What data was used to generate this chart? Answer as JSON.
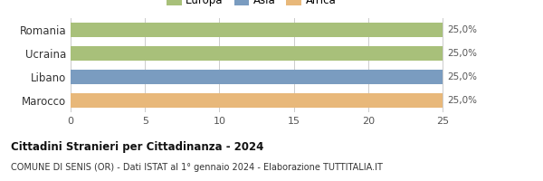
{
  "categories": [
    "Romania",
    "Ucraina",
    "Libano",
    "Marocco"
  ],
  "values": [
    25,
    25,
    25,
    25
  ],
  "bar_colors": [
    "#a8c07a",
    "#a8c07a",
    "#7a9cc0",
    "#e8b87a"
  ],
  "labels": [
    "25,0%",
    "25,0%",
    "25,0%",
    "25,0%"
  ],
  "xlim": [
    0,
    27
  ],
  "xticks": [
    0,
    5,
    10,
    15,
    20,
    25
  ],
  "title": "Cittadini Stranieri per Cittadinanza - 2024",
  "subtitle": "COMUNE DI SENIS (OR) - Dati ISTAT al 1° gennaio 2024 - Elaborazione TUTTITALIA.IT",
  "legend_labels": [
    "Europa",
    "Asia",
    "Africa"
  ],
  "legend_colors": [
    "#a8c07a",
    "#7a9cc0",
    "#e8b87a"
  ],
  "background_color": "#ffffff",
  "grid_color": "#cccccc",
  "bar_height": 0.62
}
